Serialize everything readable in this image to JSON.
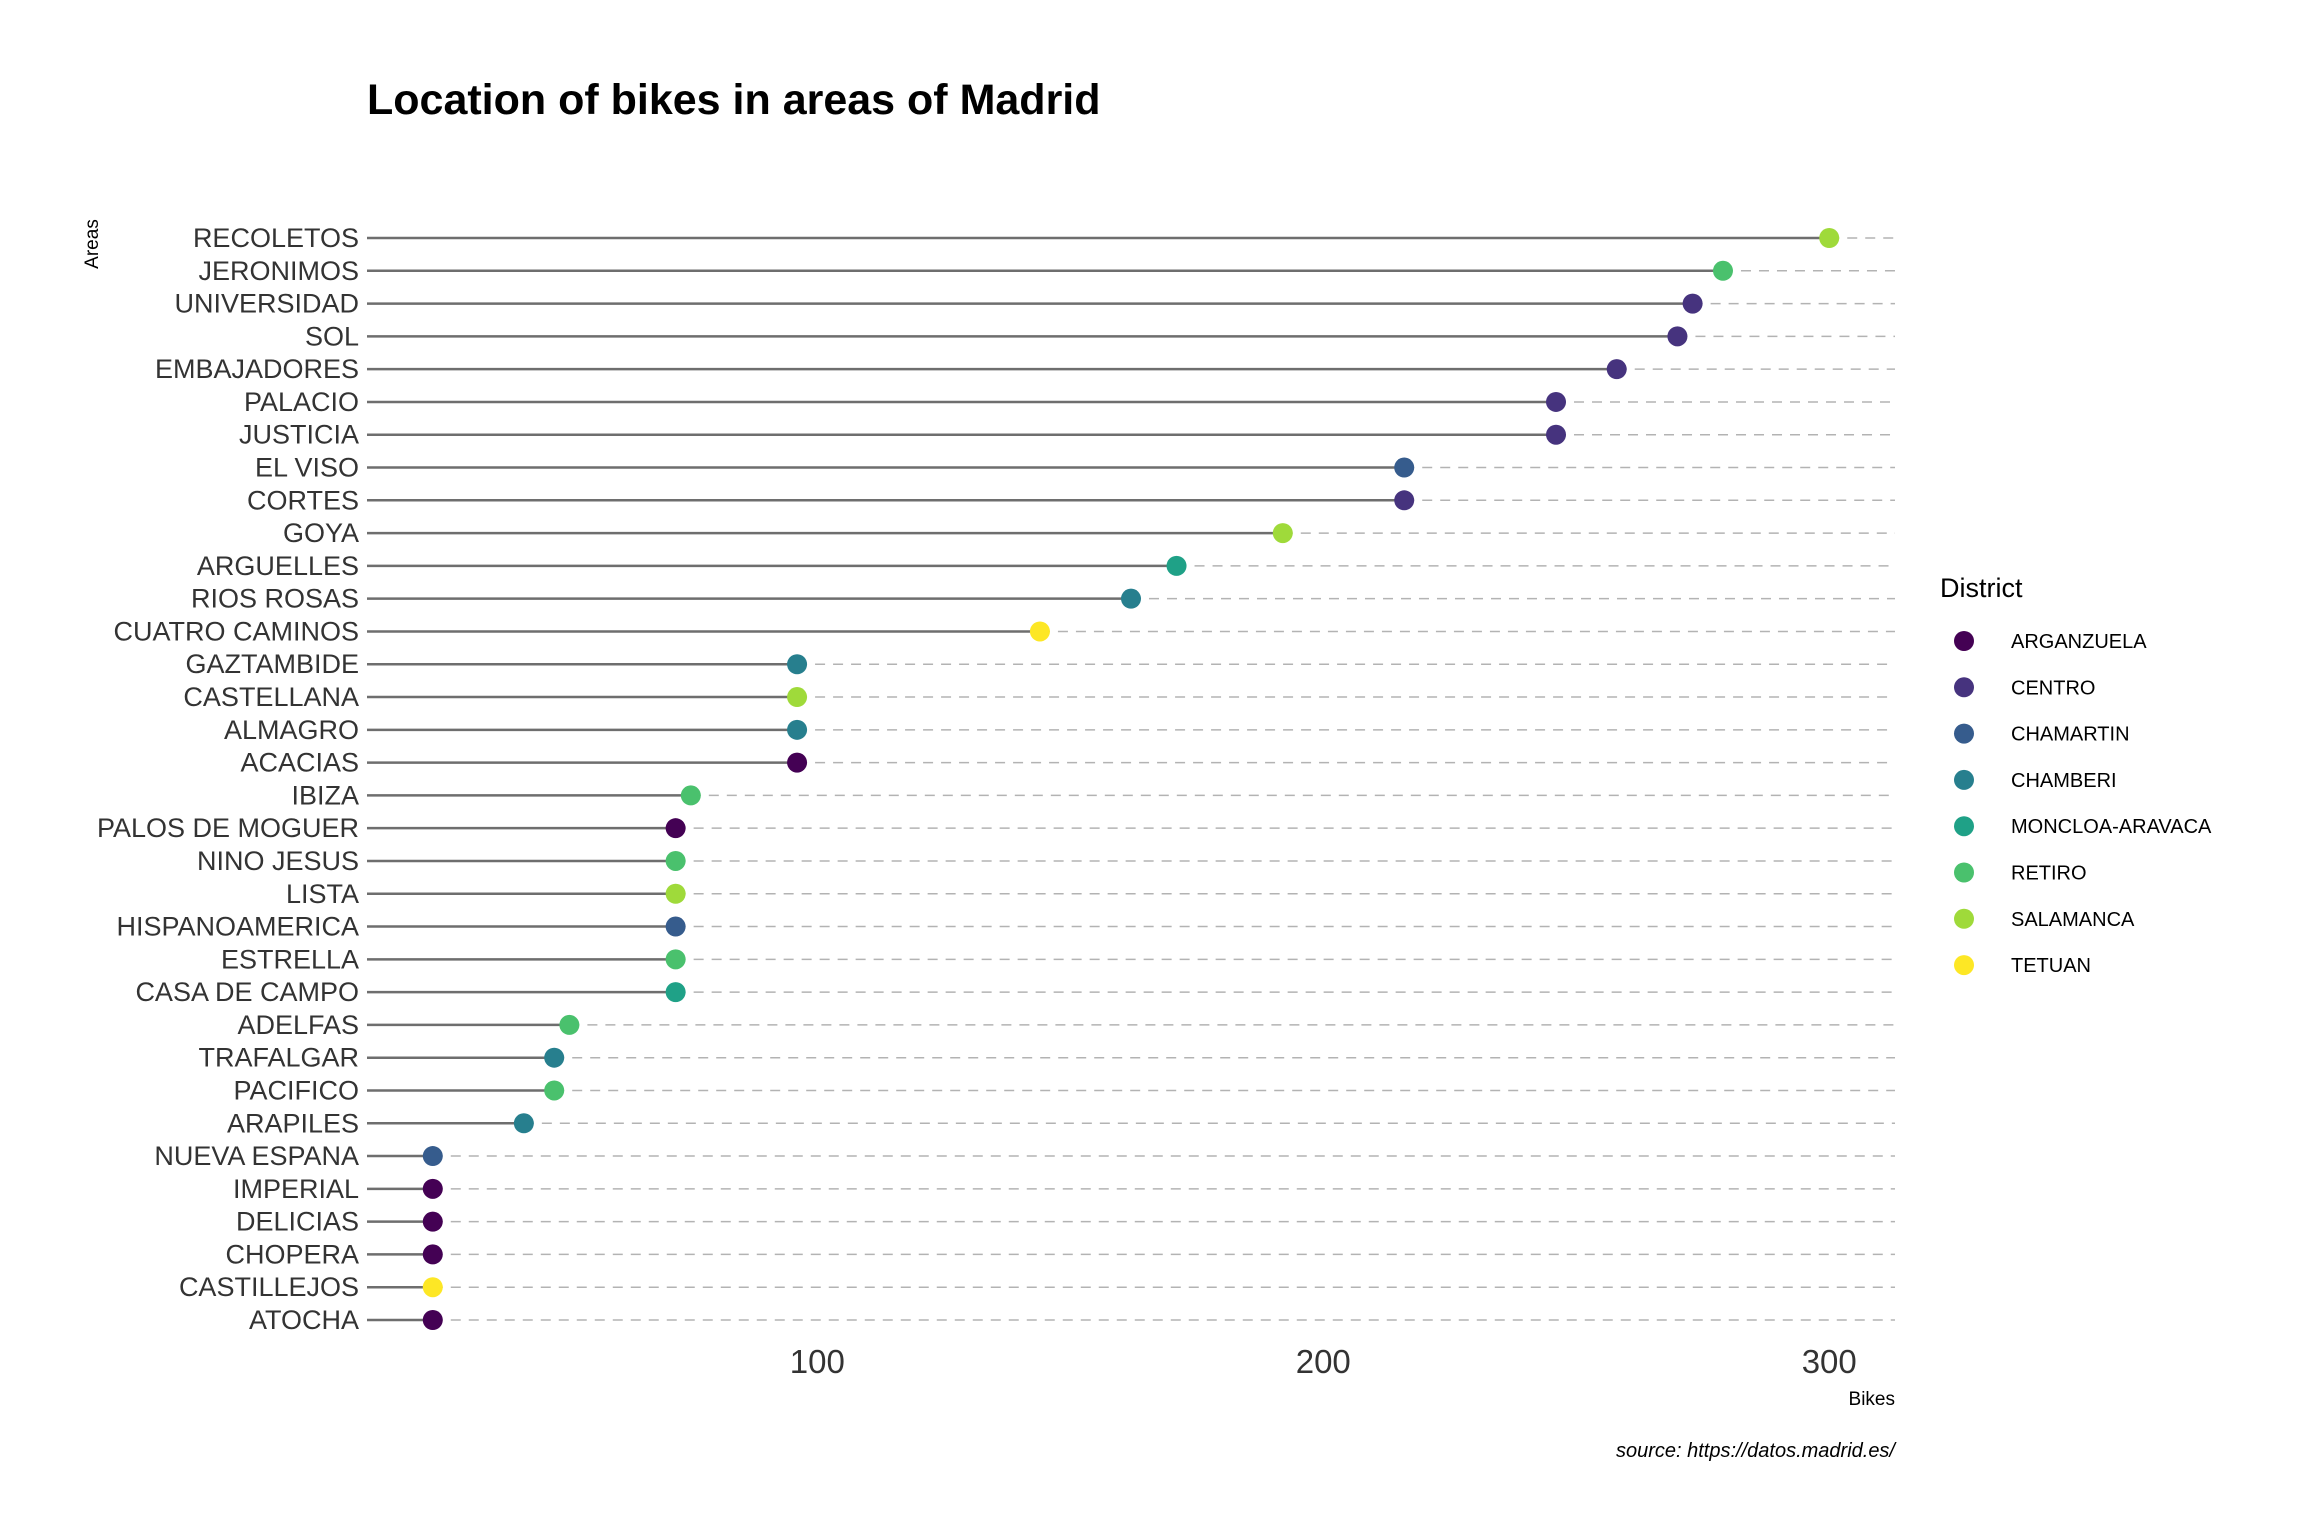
{
  "chart_data": {
    "type": "lollipop",
    "title": "Location of bikes in areas of Madrid",
    "xlabel": "Bikes",
    "ylabel": "Areas",
    "caption": "source: https://datos.madrid.es/",
    "xlim": [
      11,
      313
    ],
    "xticks": [
      100,
      200,
      300
    ],
    "legend_title": "District",
    "legend_position": "right",
    "grid": "dashed horizontal",
    "districts": [
      {
        "name": "ARGANZUELA",
        "color": "#440154"
      },
      {
        "name": "CENTRO",
        "color": "#46337E"
      },
      {
        "name": "CHAMARTIN",
        "color": "#365C8D"
      },
      {
        "name": "CHAMBERI",
        "color": "#277F8E"
      },
      {
        "name": "MONCLOA-ARAVACA",
        "color": "#1FA187"
      },
      {
        "name": "RETIRO",
        "color": "#4AC16D"
      },
      {
        "name": "SALAMANCA",
        "color": "#9FDA3A"
      },
      {
        "name": "TETUAN",
        "color": "#FDE725"
      }
    ],
    "points": [
      {
        "area": "RECOLETOS",
        "bikes": 300,
        "district": "SALAMANCA"
      },
      {
        "area": "JERONIMOS",
        "bikes": 279,
        "district": "RETIRO"
      },
      {
        "area": "UNIVERSIDAD",
        "bikes": 273,
        "district": "CENTRO"
      },
      {
        "area": "SOL",
        "bikes": 270,
        "district": "CENTRO"
      },
      {
        "area": "EMBAJADORES",
        "bikes": 258,
        "district": "CENTRO"
      },
      {
        "area": "PALACIO",
        "bikes": 246,
        "district": "CENTRO"
      },
      {
        "area": "JUSTICIA",
        "bikes": 246,
        "district": "CENTRO"
      },
      {
        "area": "EL VISO",
        "bikes": 216,
        "district": "CHAMARTIN"
      },
      {
        "area": "CORTES",
        "bikes": 216,
        "district": "CENTRO"
      },
      {
        "area": "GOYA",
        "bikes": 192,
        "district": "SALAMANCA"
      },
      {
        "area": "ARGUELLES",
        "bikes": 171,
        "district": "MONCLOA-ARAVACA"
      },
      {
        "area": "RIOS ROSAS",
        "bikes": 162,
        "district": "CHAMBERI"
      },
      {
        "area": "CUATRO CAMINOS",
        "bikes": 144,
        "district": "TETUAN"
      },
      {
        "area": "GAZTAMBIDE",
        "bikes": 96,
        "district": "CHAMBERI"
      },
      {
        "area": "CASTELLANA",
        "bikes": 96,
        "district": "SALAMANCA"
      },
      {
        "area": "ALMAGRO",
        "bikes": 96,
        "district": "CHAMBERI"
      },
      {
        "area": "ACACIAS",
        "bikes": 96,
        "district": "ARGANZUELA"
      },
      {
        "area": "IBIZA",
        "bikes": 75,
        "district": "RETIRO"
      },
      {
        "area": "PALOS DE MOGUER",
        "bikes": 72,
        "district": "ARGANZUELA"
      },
      {
        "area": "NINO JESUS",
        "bikes": 72,
        "district": "RETIRO"
      },
      {
        "area": "LISTA",
        "bikes": 72,
        "district": "SALAMANCA"
      },
      {
        "area": "HISPANOAMERICA",
        "bikes": 72,
        "district": "CHAMARTIN"
      },
      {
        "area": "ESTRELLA",
        "bikes": 72,
        "district": "RETIRO"
      },
      {
        "area": "CASA DE CAMPO",
        "bikes": 72,
        "district": "MONCLOA-ARAVACA"
      },
      {
        "area": "ADELFAS",
        "bikes": 51,
        "district": "RETIRO"
      },
      {
        "area": "TRAFALGAR",
        "bikes": 48,
        "district": "CHAMBERI"
      },
      {
        "area": "PACIFICO",
        "bikes": 48,
        "district": "RETIRO"
      },
      {
        "area": "ARAPILES",
        "bikes": 42,
        "district": "CHAMBERI"
      },
      {
        "area": "NUEVA ESPANA",
        "bikes": 24,
        "district": "CHAMARTIN"
      },
      {
        "area": "IMPERIAL",
        "bikes": 24,
        "district": "ARGANZUELA"
      },
      {
        "area": "DELICIAS",
        "bikes": 24,
        "district": "ARGANZUELA"
      },
      {
        "area": "CHOPERA",
        "bikes": 24,
        "district": "ARGANZUELA"
      },
      {
        "area": "CASTILLEJOS",
        "bikes": 24,
        "district": "TETUAN"
      },
      {
        "area": "ATOCHA",
        "bikes": 24,
        "district": "ARGANZUELA"
      }
    ]
  }
}
